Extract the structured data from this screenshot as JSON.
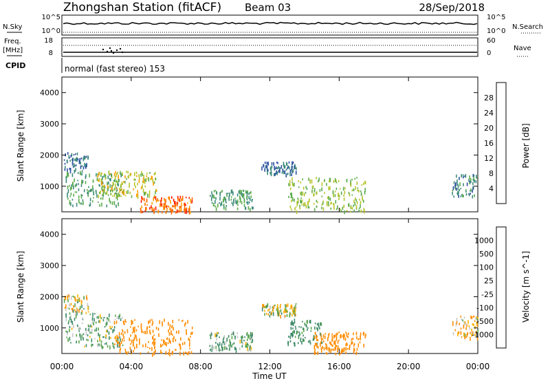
{
  "header": {
    "station": "Zhongshan Station (fitACF)",
    "beam": "Beam 03",
    "date": "28/Sep/2018"
  },
  "top_panels": {
    "nsky_label": "N.Sky",
    "nsky_ticks": [
      "10^5",
      "10^0"
    ],
    "nsearch_label": "N.Search",
    "nsearch_ticks": [
      "10^5",
      "10^0"
    ],
    "freq_label": "Freq.",
    "freq_unit": "[MHz]",
    "freq_ticks": [
      "18",
      "8"
    ],
    "nave_label": "Nave",
    "nave_ticks": [
      "60",
      "0"
    ],
    "cpid_label": "CPID",
    "cpid_text": "normal (fast stereo) 153"
  },
  "x_axis": {
    "label": "Time UT",
    "ticks": [
      "00:00",
      "04:00",
      "08:00",
      "12:00",
      "16:00",
      "20:00",
      "00:00"
    ]
  },
  "colors": {
    "power_scale": [
      "#1a1aff",
      "#2b4fa0",
      "#3d8a7a",
      "#5aab4a",
      "#b5c42a",
      "#ff9e00",
      "#ff6a00",
      "#ff1a00"
    ],
    "velocity_scale": [
      "#1a2aa6",
      "#2f5ea8",
      "#3e8a68",
      "#5aa54a",
      "#c8c8c8",
      "#ffb400",
      "#ff8c00",
      "#ff5a00",
      "#ff1a00"
    ]
  },
  "chart_data": [
    {
      "type": "heatmap",
      "title": "Power",
      "ylabel": "Slant Range [km]",
      "xlabel": "",
      "x_range": [
        "00:00",
        "00:00"
      ],
      "ylim": [
        180,
        4500
      ],
      "y_ticks": [
        1000,
        2000,
        3000,
        4000
      ],
      "colorbar": {
        "label": "Power [dB]",
        "ticks": [
          4,
          8,
          12,
          16,
          20,
          24,
          28
        ]
      },
      "regions": [
        {
          "t_start": 0.1,
          "t_end": 1.5,
          "r_start": 1500,
          "r_end": 2100,
          "value": 8
        },
        {
          "t_start": 0.2,
          "t_end": 3.5,
          "r_start": 400,
          "r_end": 1500,
          "value": 12
        },
        {
          "t_start": 2.0,
          "t_end": 5.5,
          "r_start": 700,
          "r_end": 1500,
          "value": 18
        },
        {
          "t_start": 4.5,
          "t_end": 7.5,
          "r_start": 200,
          "r_end": 700,
          "value": 26
        },
        {
          "t_start": 8.5,
          "t_end": 11.0,
          "r_start": 300,
          "r_end": 900,
          "value": 12
        },
        {
          "t_start": 11.5,
          "t_end": 13.5,
          "r_start": 1400,
          "r_end": 1800,
          "value": 8
        },
        {
          "t_start": 13.0,
          "t_end": 17.5,
          "r_start": 200,
          "r_end": 1300,
          "value": 16
        },
        {
          "t_start": 22.5,
          "t_end": 24.0,
          "r_start": 700,
          "r_end": 1400,
          "value": 10
        }
      ]
    },
    {
      "type": "heatmap",
      "title": "Velocity",
      "ylabel": "Slant Range [km]",
      "xlabel": "Time UT",
      "x_range": [
        "00:00",
        "00:00"
      ],
      "ylim": [
        180,
        4500
      ],
      "y_ticks": [
        1000,
        2000,
        3000,
        4000
      ],
      "colorbar": {
        "label": "Velocity [m s^-1]",
        "ticks": [
          1000,
          500,
          100,
          25,
          -25,
          -100,
          -500,
          -1000
        ]
      },
      "regions": [
        {
          "t_start": 0.1,
          "t_end": 1.5,
          "r_start": 1500,
          "r_end": 2100,
          "value": 0
        },
        {
          "t_start": 0.2,
          "t_end": 3.5,
          "r_start": 400,
          "r_end": 1500,
          "value": 100
        },
        {
          "t_start": 3.0,
          "t_end": 7.5,
          "r_start": 200,
          "r_end": 1300,
          "value": -300
        },
        {
          "t_start": 8.5,
          "t_end": 11.0,
          "r_start": 300,
          "r_end": 900,
          "value": 100
        },
        {
          "t_start": 11.5,
          "t_end": 13.5,
          "r_start": 1400,
          "r_end": 1800,
          "value": 0
        },
        {
          "t_start": 13.0,
          "t_end": 15.0,
          "r_start": 500,
          "r_end": 1300,
          "value": 200
        },
        {
          "t_start": 14.5,
          "t_end": 17.5,
          "r_start": 200,
          "r_end": 900,
          "value": -300
        },
        {
          "t_start": 22.5,
          "t_end": 24.0,
          "r_start": 700,
          "r_end": 1400,
          "value": -100
        }
      ]
    }
  ]
}
